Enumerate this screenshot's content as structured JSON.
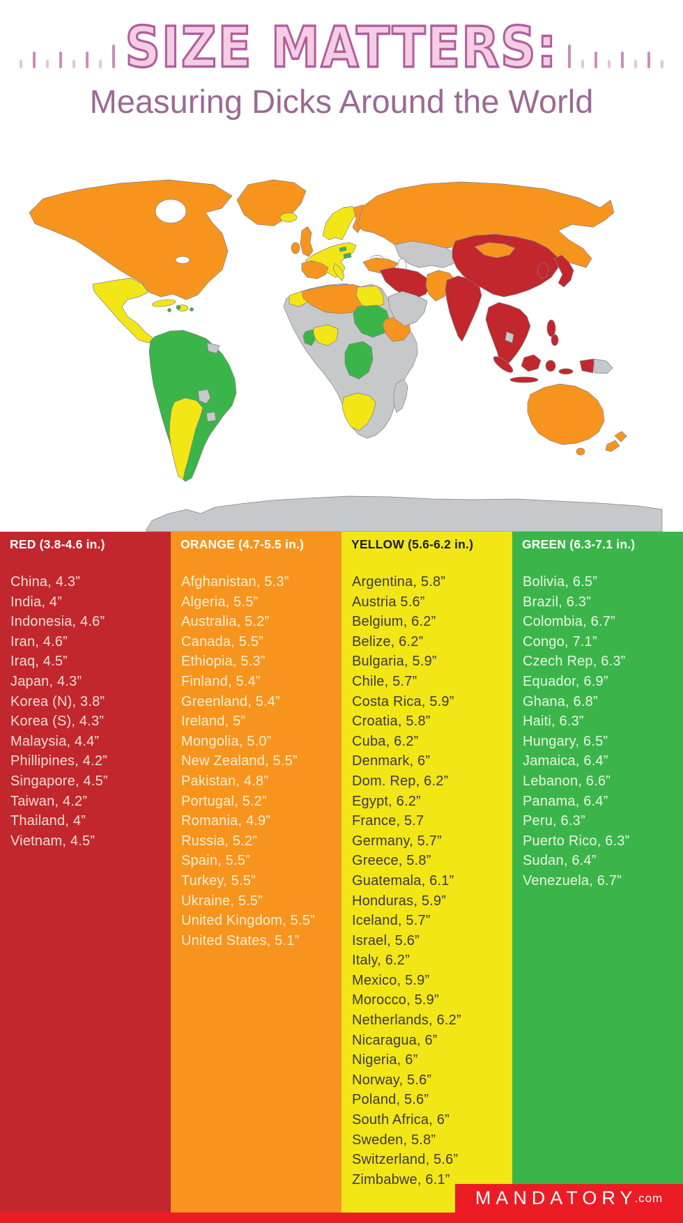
{
  "header": {
    "title": "SIZE MATTERS:",
    "subtitle": "Measuring Dicks Around the World"
  },
  "palette": {
    "title_pink": "#F7CCE6",
    "title_outline": "#AF5F9B",
    "subtitle_mauve": "#9A6B93",
    "footer_red": "#EC1C24"
  },
  "legend_colors": {
    "red": "#C1272D",
    "orange": "#F7941E",
    "yellow": "#F3E617",
    "green": "#3BB54A",
    "gray": "#C7C8CA"
  },
  "columns": [
    {
      "id": "red",
      "header": "RED (3.8-4.6 in.)",
      "bg": "#C1272D",
      "header_text_color": "#FFFFFF",
      "item_text_color": "#F4DDD6",
      "items": [
        "China, 4.3”",
        "India, 4”",
        "Indonesia, 4.6”",
        "Iran, 4.6”",
        "Iraq, 4.5”",
        "Japan, 4.3”",
        "Korea (N), 3.8”",
        "Korea (S), 4.3”",
        "Malaysia, 4.4”",
        "Phillipines, 4.2”",
        "Singapore, 4.5”",
        "Taiwan, 4.2”",
        "Thailand, 4”",
        "Vietnam, 4.5”"
      ]
    },
    {
      "id": "orange",
      "header": "ORANGE (4.7-5.5 in.)",
      "bg": "#F7941E",
      "header_text_color": "#FFFFFF",
      "item_text_color": "#FCEFD4",
      "items": [
        "Afghanistan, 5.3”",
        "Algeria, 5.5”",
        "Australia, 5.2”",
        "Canada, 5.5”",
        "Ethiopia, 5.3”",
        "Finland, 5.4”",
        "Greenland, 5.4”",
        "Ireland, 5”",
        "Mongolia, 5.0”",
        "New Zealand, 5.5”",
        "Pakistan, 4.8”",
        "Portugal, 5.2”",
        "Romania, 4.9”",
        "Russia, 5.2”",
        "Spain, 5.5”",
        "Turkey, 5.5”",
        "Ukraine, 5.5”",
        "United Kingdom, 5.5”",
        "United States, 5.1”"
      ]
    },
    {
      "id": "yellow",
      "header": "YELLOW (5.6-6.2 in.)",
      "bg": "#F3E617",
      "header_text_color": "#1D1D1B",
      "item_text_color": "#3B3B3A",
      "items": [
        "Argentina, 5.8”",
        "Austria 5.6”",
        "Belgium, 6.2”",
        "Belize, 6.2”",
        "Bulgaria, 5.9”",
        "Chile, 5.7”",
        "Costa Rica, 5.9”",
        "Croatia, 5.8”",
        "Cuba, 6.2”",
        "Denmark, 6”",
        "Dom. Rep, 6.2”",
        "Egypt, 6.2”",
        "France, 5.7",
        "Germany, 5.7”",
        "Greece, 5.8”",
        "Guatemala, 6.1”",
        "Honduras, 5.9”",
        "Iceland, 5.7”",
        "Israel, 5.6”",
        "Italy, 6.2”",
        "Mexico, 5.9”",
        "Morocco, 5.9”",
        "Netherlands, 6.2”",
        "Nicaragua, 6”",
        "Nigeria, 6”",
        "Norway, 5.6”",
        "Poland, 5.6”",
        "South Africa, 6”",
        "Sweden, 5.8”",
        "Switzerland, 5.6”",
        "Zimbabwe, 6.1”"
      ]
    },
    {
      "id": "green",
      "header": "GREEN (6.3-7.1 in.)",
      "bg": "#3BB54A",
      "header_text_color": "#FFFFFF",
      "item_text_color": "#E9F5E4",
      "items": [
        "Bolivia, 6.5”",
        "Brazil, 6.3”",
        "Colombia, 6.7”",
        "Congo, 7.1”",
        "Czech Rep, 6.3”",
        "Equador, 6.9”",
        "Ghana, 6.8”",
        "Haiti, 6.3”",
        "Hungary, 6.5”",
        "Jamaica, 6.4”",
        "Lebanon, 6.6”",
        "Panama, 6.4”",
        "Peru, 6.3”",
        "Puerto Rico, 6.3”",
        "Sudan, 6.4”",
        "Venezuela, 6.7”"
      ]
    }
  ],
  "footer": {
    "brand": "MANDATORY",
    "brand_suffix": ".com",
    "bar_color": "#EC1C24"
  },
  "chart_data": {
    "type": "heatmap",
    "subtype": "world-choropleth",
    "title": "SIZE MATTERS: Measuring Dicks Around the World",
    "unit": "inches",
    "no_data_color": "#C7C8CA",
    "legend_position": "bottom-columns",
    "groups": [
      {
        "label": "RED (3.8-4.6 in.)",
        "color": "#C1272D",
        "range": [
          3.8,
          4.6
        ],
        "data": [
          {
            "country": "China",
            "size": 4.3
          },
          {
            "country": "India",
            "size": 4
          },
          {
            "country": "Indonesia",
            "size": 4.6
          },
          {
            "country": "Iran",
            "size": 4.6
          },
          {
            "country": "Iraq",
            "size": 4.5
          },
          {
            "country": "Japan",
            "size": 4.3
          },
          {
            "country": "Korea (N)",
            "size": 3.8
          },
          {
            "country": "Korea (S)",
            "size": 4.3
          },
          {
            "country": "Malaysia",
            "size": 4.4
          },
          {
            "country": "Phillipines",
            "size": 4.2
          },
          {
            "country": "Singapore",
            "size": 4.5
          },
          {
            "country": "Taiwan",
            "size": 4.2
          },
          {
            "country": "Thailand",
            "size": 4
          },
          {
            "country": "Vietnam",
            "size": 4.5
          }
        ]
      },
      {
        "label": "ORANGE (4.7-5.5 in.)",
        "color": "#F7941E",
        "range": [
          4.7,
          5.5
        ],
        "data": [
          {
            "country": "Afghanistan",
            "size": 5.3
          },
          {
            "country": "Algeria",
            "size": 5.5
          },
          {
            "country": "Australia",
            "size": 5.2
          },
          {
            "country": "Canada",
            "size": 5.5
          },
          {
            "country": "Ethiopia",
            "size": 5.3
          },
          {
            "country": "Finland",
            "size": 5.4
          },
          {
            "country": "Greenland",
            "size": 5.4
          },
          {
            "country": "Ireland",
            "size": 5
          },
          {
            "country": "Mongolia",
            "size": 5.0
          },
          {
            "country": "New Zealand",
            "size": 5.5
          },
          {
            "country": "Pakistan",
            "size": 4.8
          },
          {
            "country": "Portugal",
            "size": 5.2
          },
          {
            "country": "Romania",
            "size": 4.9
          },
          {
            "country": "Russia",
            "size": 5.2
          },
          {
            "country": "Spain",
            "size": 5.5
          },
          {
            "country": "Turkey",
            "size": 5.5
          },
          {
            "country": "Ukraine",
            "size": 5.5
          },
          {
            "country": "United Kingdom",
            "size": 5.5
          },
          {
            "country": "United States",
            "size": 5.1
          }
        ]
      },
      {
        "label": "YELLOW (5.6-6.2 in.)",
        "color": "#F3E617",
        "range": [
          5.6,
          6.2
        ],
        "data": [
          {
            "country": "Argentina",
            "size": 5.8
          },
          {
            "country": "Austria",
            "size": 5.6
          },
          {
            "country": "Belgium",
            "size": 6.2
          },
          {
            "country": "Belize",
            "size": 6.2
          },
          {
            "country": "Bulgaria",
            "size": 5.9
          },
          {
            "country": "Chile",
            "size": 5.7
          },
          {
            "country": "Costa Rica",
            "size": 5.9
          },
          {
            "country": "Croatia",
            "size": 5.8
          },
          {
            "country": "Cuba",
            "size": 6.2
          },
          {
            "country": "Denmark",
            "size": 6
          },
          {
            "country": "Dom. Rep",
            "size": 6.2
          },
          {
            "country": "Egypt",
            "size": 6.2
          },
          {
            "country": "France",
            "size": 5.7
          },
          {
            "country": "Germany",
            "size": 5.7
          },
          {
            "country": "Greece",
            "size": 5.8
          },
          {
            "country": "Guatemala",
            "size": 6.1
          },
          {
            "country": "Honduras",
            "size": 5.9
          },
          {
            "country": "Iceland",
            "size": 5.7
          },
          {
            "country": "Israel",
            "size": 5.6
          },
          {
            "country": "Italy",
            "size": 6.2
          },
          {
            "country": "Mexico",
            "size": 5.9
          },
          {
            "country": "Morocco",
            "size": 5.9
          },
          {
            "country": "Netherlands",
            "size": 6.2
          },
          {
            "country": "Nicaragua",
            "size": 6
          },
          {
            "country": "Nigeria",
            "size": 6
          },
          {
            "country": "Norway",
            "size": 5.6
          },
          {
            "country": "Poland",
            "size": 5.6
          },
          {
            "country": "South Africa",
            "size": 6
          },
          {
            "country": "Sweden",
            "size": 5.8
          },
          {
            "country": "Switzerland",
            "size": 5.6
          },
          {
            "country": "Zimbabwe",
            "size": 6.1
          }
        ]
      },
      {
        "label": "GREEN (6.3-7.1 in.)",
        "color": "#3BB54A",
        "range": [
          6.3,
          7.1
        ],
        "data": [
          {
            "country": "Bolivia",
            "size": 6.5
          },
          {
            "country": "Brazil",
            "size": 6.3
          },
          {
            "country": "Colombia",
            "size": 6.7
          },
          {
            "country": "Congo",
            "size": 7.1
          },
          {
            "country": "Czech Rep",
            "size": 6.3
          },
          {
            "country": "Equador",
            "size": 6.9
          },
          {
            "country": "Ghana",
            "size": 6.8
          },
          {
            "country": "Haiti",
            "size": 6.3
          },
          {
            "country": "Hungary",
            "size": 6.5
          },
          {
            "country": "Jamaica",
            "size": 6.4
          },
          {
            "country": "Lebanon",
            "size": 6.6
          },
          {
            "country": "Panama",
            "size": 6.4
          },
          {
            "country": "Peru",
            "size": 6.3
          },
          {
            "country": "Puerto Rico",
            "size": 6.3
          },
          {
            "country": "Sudan",
            "size": 6.4
          },
          {
            "country": "Venezuela",
            "size": 6.7
          }
        ]
      }
    ]
  }
}
